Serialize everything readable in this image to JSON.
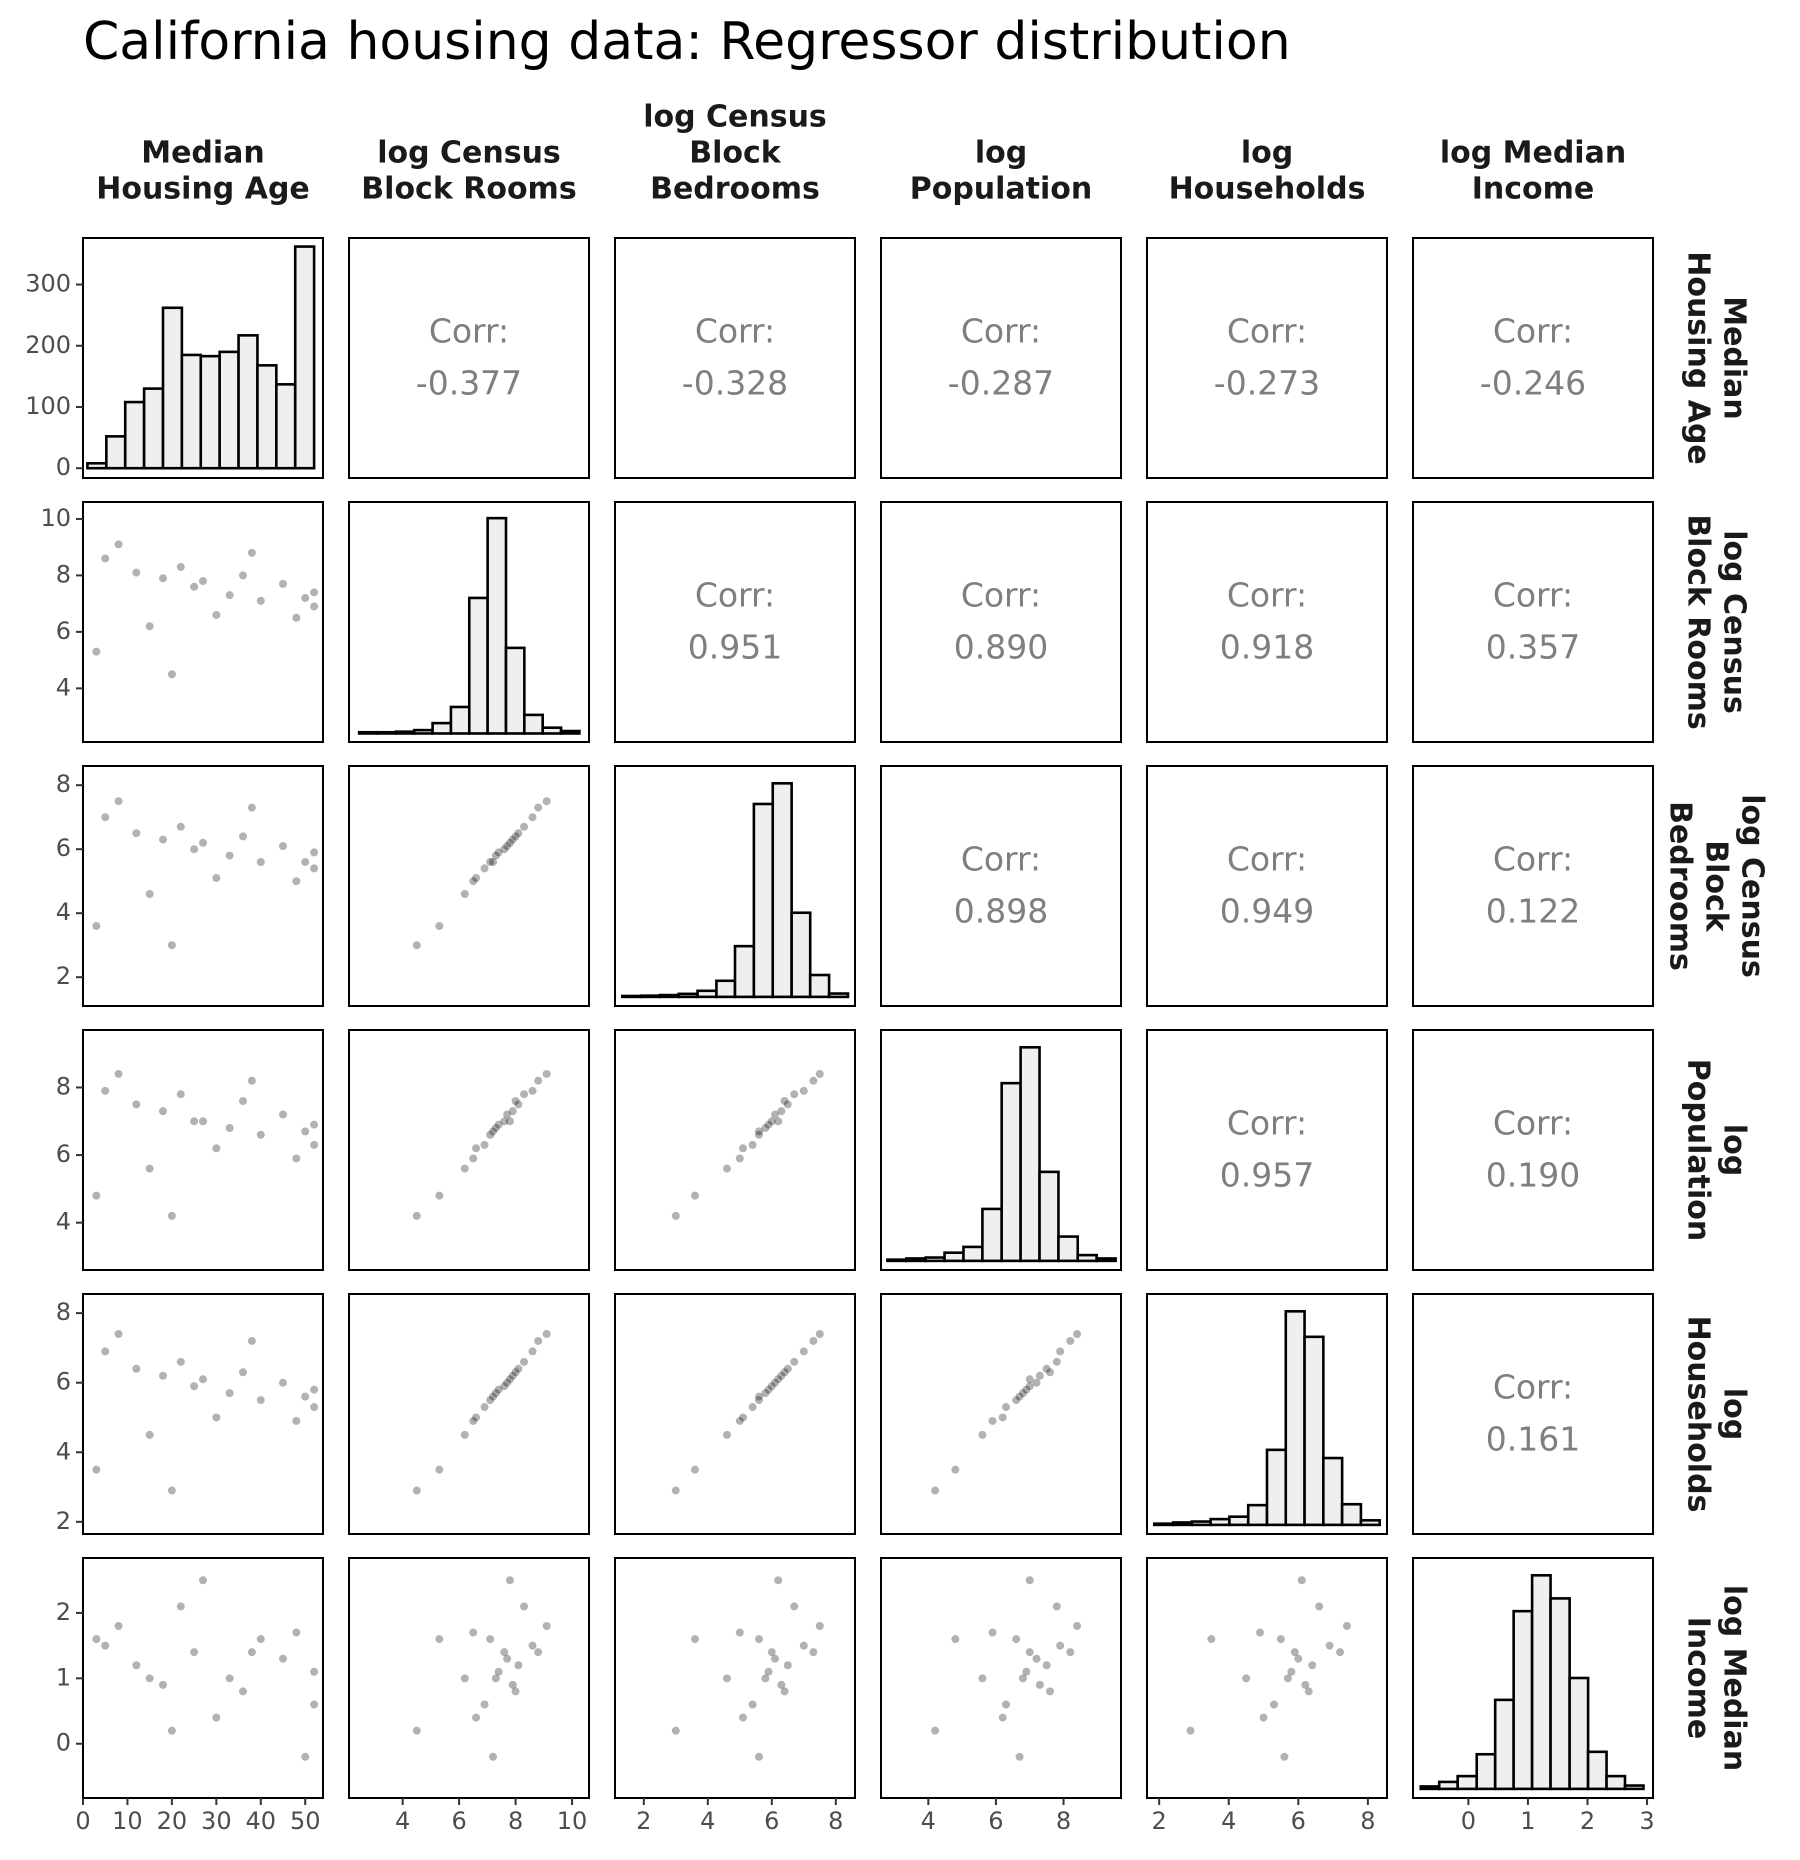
{
  "chart_data": {
    "type": "scatter-matrix",
    "title": "California housing data: Regressor distribution",
    "corr_label": "Corr:",
    "point_color": "#000000",
    "bar_color": "#efefef",
    "variables": [
      {
        "label": [
          "Median",
          "Housing Age"
        ],
        "lim": [
          0,
          54
        ],
        "ticks": [
          0,
          10,
          20,
          30,
          40,
          50
        ],
        "values": [
          5,
          12,
          18,
          25,
          33,
          40,
          52,
          52,
          8,
          22,
          30,
          45,
          15,
          36,
          48,
          3,
          27,
          50,
          20,
          38
        ],
        "hist": {
          "bins": [
            1,
            5.25,
            9.5,
            13.75,
            18,
            22.25,
            26.5,
            30.75,
            35,
            39.25,
            43.5,
            47.75,
            52
          ],
          "counts": [
            8,
            52,
            108,
            130,
            262,
            185,
            183,
            190,
            217,
            168,
            137,
            362
          ],
          "ylim": [
            -16,
            376
          ],
          "yticks": [
            0,
            100,
            200,
            300
          ]
        },
        "correlations": {
          "values": [
            -0.377,
            -0.328,
            -0.287,
            -0.273,
            -0.246
          ],
          "value_labels": [
            "-0.377",
            "-0.328",
            "-0.287",
            "-0.273",
            "-0.246"
          ]
        }
      },
      {
        "label": [
          "log Census",
          "Block Rooms"
        ],
        "lim": [
          2.1,
          10.6
        ],
        "ticks": [
          4,
          6,
          8,
          10
        ],
        "values": [
          8.6,
          8.1,
          7.9,
          7.6,
          7.3,
          7.1,
          7.4,
          6.9,
          9.1,
          8.3,
          6.6,
          7.7,
          6.2,
          8.0,
          6.5,
          5.3,
          7.8,
          7.2,
          4.5,
          8.8
        ],
        "hist": {
          "bins": [
            2.46,
            3.11,
            3.76,
            4.41,
            5.06,
            5.71,
            6.36,
            7.01,
            7.66,
            8.31,
            8.96,
            9.61,
            10.26
          ],
          "counts": [
            4,
            4,
            6,
            11,
            34,
            87,
            445,
            707,
            281,
            61,
            19,
            8
          ],
          "ylim": [
            -28,
            760
          ]
        },
        "correlations": {
          "values": [
            0.951,
            0.89,
            0.918,
            0.357
          ],
          "value_labels": [
            "0.951",
            "0.890",
            "0.918",
            "0.357"
          ]
        }
      },
      {
        "label": [
          "log Census",
          "Block",
          "Bedrooms"
        ],
        "lim": [
          1.1,
          8.6
        ],
        "ticks": [
          2,
          4,
          6,
          8
        ],
        "values": [
          7.0,
          6.5,
          6.3,
          6.0,
          5.8,
          5.6,
          5.9,
          5.4,
          7.5,
          6.7,
          5.1,
          6.1,
          4.6,
          6.4,
          5.0,
          3.6,
          6.2,
          5.6,
          3.0,
          7.3
        ],
        "hist": {
          "bins": [
            1.33,
            1.92,
            2.5,
            3.09,
            3.68,
            4.27,
            4.85,
            5.44,
            6.03,
            6.62,
            7.2,
            7.79,
            8.38
          ],
          "counts": [
            3,
            4,
            6,
            10,
            20,
            53,
            167,
            635,
            703,
            277,
            72,
            11
          ],
          "ylim": [
            -30,
            760
          ]
        },
        "correlations": {
          "values": [
            0.898,
            0.949,
            0.122
          ],
          "value_labels": [
            "0.898",
            "0.949",
            "0.122"
          ]
        }
      },
      {
        "label": [
          "log",
          "Population"
        ],
        "lim": [
          2.6,
          9.7
        ],
        "ticks": [
          4,
          6,
          8
        ],
        "values": [
          7.9,
          7.5,
          7.3,
          7.0,
          6.8,
          6.6,
          6.9,
          6.3,
          8.4,
          7.8,
          6.2,
          7.2,
          5.6,
          7.6,
          5.9,
          4.8,
          7.0,
          6.7,
          4.2,
          8.2
        ],
        "hist": {
          "bins": [
            2.79,
            3.35,
            3.92,
            4.48,
            5.04,
            5.6,
            6.17,
            6.73,
            7.29,
            7.85,
            8.42,
            8.98,
            9.54
          ],
          "counts": [
            4,
            8,
            11,
            27,
            46,
            171,
            585,
            703,
            293,
            80,
            19,
            8
          ],
          "ylim": [
            -30,
            760
          ]
        },
        "correlations": {
          "values": [
            0.957,
            0.19
          ],
          "value_labels": [
            "0.957",
            "0.190"
          ]
        }
      },
      {
        "label": [
          "log",
          "Households"
        ],
        "lim": [
          1.65,
          8.55
        ],
        "ticks": [
          2,
          4,
          6,
          8
        ],
        "values": [
          6.9,
          6.4,
          6.2,
          5.9,
          5.7,
          5.5,
          5.8,
          5.3,
          7.4,
          6.6,
          5.0,
          6.0,
          4.5,
          6.3,
          4.9,
          3.5,
          6.1,
          5.6,
          2.9,
          7.2
        ],
        "hist": {
          "bins": [
            1.86,
            2.4,
            2.94,
            3.48,
            4.02,
            4.56,
            5.1,
            5.64,
            6.18,
            6.72,
            7.26,
            7.8,
            8.34
          ],
          "counts": [
            4,
            8,
            11,
            19,
            27,
            65,
            247,
            703,
            619,
            220,
            68,
            15
          ],
          "ylim": [
            -30,
            760
          ]
        },
        "correlations": {
          "values": [
            0.161
          ],
          "value_labels": [
            "0.161"
          ]
        }
      },
      {
        "label": [
          "log Median",
          "Income"
        ],
        "lim": [
          -0.93,
          3.1
        ],
        "ticks": [
          0,
          1,
          2,
          3
        ],
        "ylim": [
          -0.83,
          2.84
        ],
        "yticks": [
          0,
          1,
          2
        ],
        "values": [
          1.5,
          1.2,
          0.9,
          1.4,
          1.0,
          1.6,
          1.1,
          0.6,
          1.8,
          2.1,
          0.4,
          1.3,
          1.0,
          0.8,
          1.7,
          1.6,
          2.5,
          -0.2,
          0.2,
          1.4
        ],
        "hist": {
          "bins": [
            -0.8,
            -0.49,
            -0.18,
            0.14,
            0.45,
            0.76,
            1.07,
            1.38,
            1.7,
            2.01,
            2.32,
            2.63,
            2.94
          ],
          "counts": [
            8,
            23,
            42,
            114,
            293,
            585,
            703,
            627,
            365,
            122,
            42,
            11
          ],
          "ylim": [
            -30,
            760
          ]
        }
      }
    ]
  }
}
